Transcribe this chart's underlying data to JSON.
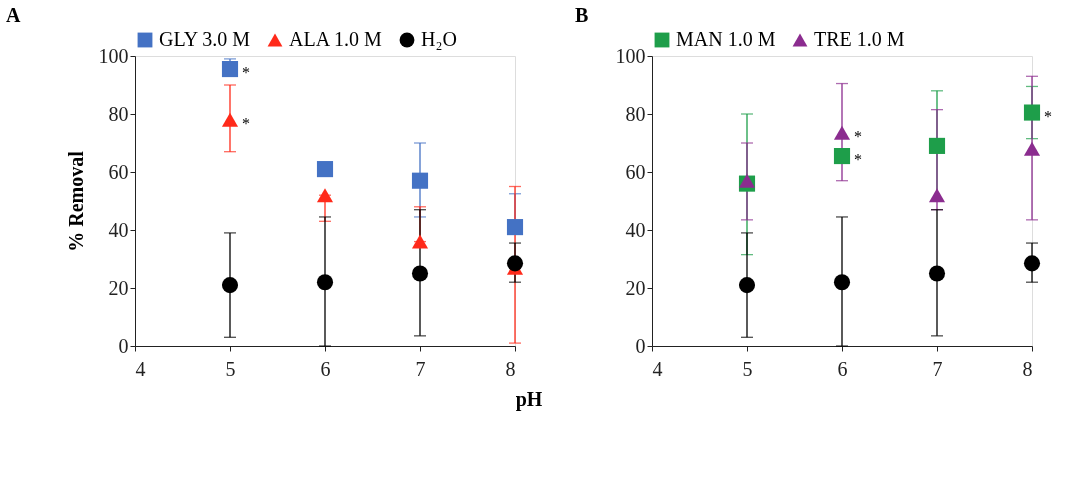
{
  "chart_data": [
    {
      "type": "scatter",
      "title": "A",
      "xlabel": "pH",
      "ylabel": "% Removal",
      "x": [
        5,
        6,
        7,
        8
      ],
      "xlim": [
        4,
        8
      ],
      "xticks": [
        4,
        5,
        6,
        7,
        8
      ],
      "ylim": [
        0,
        100
      ],
      "yticks": [
        0,
        20,
        40,
        60,
        80,
        100
      ],
      "grid": false,
      "legend": "top",
      "series": [
        {
          "name": "GLY 3.0 M",
          "color": "#4472c4",
          "marker": "square",
          "values": [
            95.5,
            61,
            57,
            41
          ],
          "errors": [
            [
              93,
              99
            ],
            null,
            [
              44.5,
              70
            ],
            [
              41,
              52.5
            ]
          ]
        },
        {
          "name": "ALA 1.0 M",
          "color": "#ff2a1a",
          "marker": "triangle",
          "values": [
            78,
            52,
            36,
            27
          ],
          "errors": [
            [
              67,
              90
            ],
            [
              43,
              52
            ],
            [
              36,
              48
            ],
            [
              1,
              55
            ]
          ]
        },
        {
          "name": "H₂O",
          "color": "#000000",
          "marker": "circle",
          "values": [
            21,
            22,
            25,
            28.5
          ],
          "errors": [
            [
              3,
              39
            ],
            [
              0,
              44.5
            ],
            [
              3.5,
              47
            ],
            [
              22,
              35.5
            ]
          ]
        }
      ],
      "annotations": [
        {
          "text": "*",
          "x": 5,
          "y": 95.5
        },
        {
          "text": "*",
          "x": 5,
          "y": 78
        }
      ]
    },
    {
      "type": "scatter",
      "title": "B",
      "x": [
        5,
        6,
        7,
        8
      ],
      "xlim": [
        4,
        8
      ],
      "xticks": [
        4,
        5,
        6,
        7,
        8
      ],
      "ylim": [
        0,
        100
      ],
      "yticks": [
        0,
        20,
        40,
        60,
        80,
        100
      ],
      "grid": false,
      "legend": "top",
      "series": [
        {
          "name": "MAN 1.0 M",
          "color": "#1e9e4a",
          "marker": "square",
          "values": [
            56,
            65.5,
            69,
            80.5
          ],
          "errors": [
            [
              31.5,
              80
            ],
            null,
            [
              50,
              88
            ],
            [
              71.5,
              89.5
            ]
          ]
        },
        {
          "name": "TRE 1.0 M",
          "color": "#8b2c8f",
          "marker": "triangle",
          "values": [
            57,
            73.5,
            52,
            68
          ],
          "errors": [
            [
              43.5,
              70
            ],
            [
              57,
              90.5
            ],
            [
              47,
              81.5
            ],
            [
              43.5,
              93
            ]
          ]
        },
        {
          "color": "#000000",
          "marker": "circle",
          "values": [
            21,
            22,
            25,
            28.5
          ],
          "errors": [
            [
              3,
              39
            ],
            [
              0,
              44.5
            ],
            [
              3.5,
              47
            ],
            [
              22,
              35.5
            ]
          ]
        }
      ],
      "annotations": [
        {
          "text": "*",
          "x": 6,
          "y": 73.5
        },
        {
          "text": "*",
          "x": 6,
          "y": 65.5
        },
        {
          "text": "*",
          "x": 8,
          "y": 80.5
        }
      ]
    }
  ]
}
